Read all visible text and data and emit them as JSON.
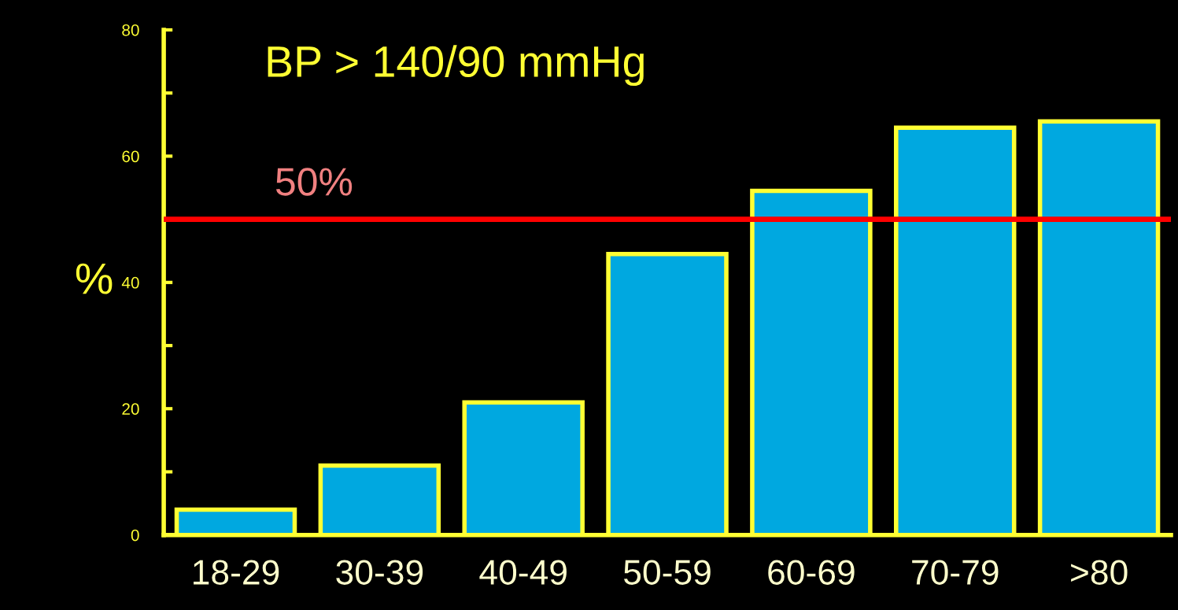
{
  "chart_data": {
    "type": "bar",
    "title": "BP > 140/90 mmHg",
    "ylabel": "%",
    "categories": [
      "18-29",
      "30-39",
      "40-49",
      "50-59",
      "60-69",
      "70-79",
      ">80"
    ],
    "values": [
      4,
      11,
      21,
      44.5,
      54.5,
      64.5,
      65.5
    ],
    "color": "#00a8e0",
    "ylim": [
      0,
      80
    ],
    "yticks": [
      0,
      {
        "value": 10,
        "label": null
      },
      20,
      {
        "value": 30,
        "label": null
      },
      40,
      {
        "value": 50,
        "label": null
      },
      60,
      {
        "value": 70,
        "label": null
      },
      80
    ],
    "ref_lines": [
      {
        "axis": "y",
        "value": 50,
        "label": "50%",
        "color": "#ff0000"
      }
    ],
    "grid": false,
    "legend": false
  }
}
